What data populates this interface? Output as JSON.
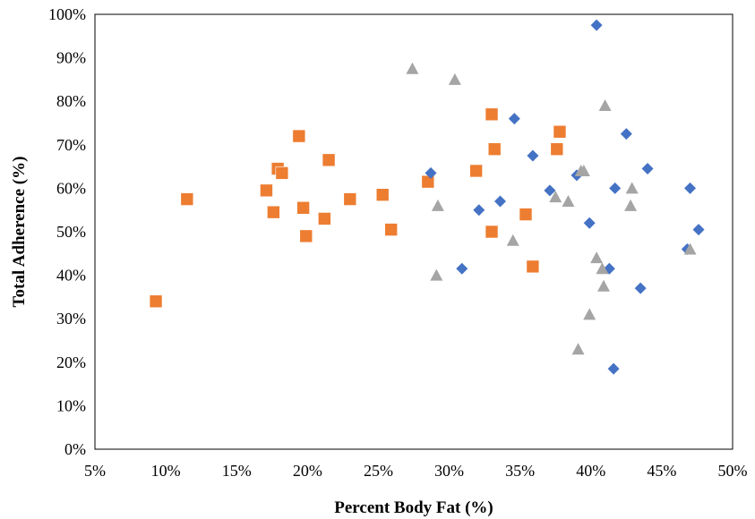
{
  "chart_data": {
    "type": "scatter",
    "xlabel": "Percent Body Fat (%)",
    "ylabel": "Total Adherence (%)",
    "xlim": [
      5,
      50
    ],
    "ylim": [
      0,
      100
    ],
    "x_ticks": [
      "5%",
      "10%",
      "15%",
      "20%",
      "25%",
      "30%",
      "35%",
      "40%",
      "45%",
      "50%"
    ],
    "y_ticks": [
      "0%",
      "10%",
      "20%",
      "30%",
      "40%",
      "50%",
      "60%",
      "70%",
      "80%",
      "90%",
      "100%"
    ],
    "grid": false,
    "legend": "none",
    "series": [
      {
        "marker": "square",
        "color": "#ED7D31",
        "x": [
          9.3,
          11.5,
          17.1,
          17.6,
          17.9,
          18.2,
          19.4,
          19.7,
          19.9,
          21.2,
          21.5,
          23.0,
          25.3,
          25.9,
          28.5,
          31.9,
          33.0,
          33.0,
          33.2,
          35.4,
          35.9,
          37.6,
          37.8
        ],
        "y": [
          34,
          57.5,
          59.5,
          54.5,
          64.5,
          63.5,
          72,
          55.5,
          49,
          53,
          66.5,
          57.5,
          58.5,
          50.5,
          61.5,
          64,
          77,
          50,
          69,
          54,
          42,
          69,
          73
        ]
      },
      {
        "marker": "diamond",
        "color": "#4472C4",
        "x": [
          28.7,
          30.9,
          32.1,
          33.6,
          34.6,
          35.9,
          37.1,
          39.0,
          39.9,
          40.4,
          41.3,
          41.6,
          41.7,
          42.5,
          43.5,
          44.0,
          46.8,
          47.0,
          47.6
        ],
        "y": [
          63.5,
          41.5,
          55,
          57,
          76,
          67.5,
          59.5,
          63,
          52,
          97.5,
          41.5,
          18.5,
          60,
          72.5,
          37,
          64.5,
          46,
          60,
          50.5
        ]
      },
      {
        "marker": "triangle",
        "color": "#A5A5A5",
        "x": [
          27.4,
          29.1,
          29.2,
          30.4,
          34.5,
          37.5,
          38.4,
          39.1,
          39.3,
          39.5,
          39.9,
          40.4,
          40.8,
          40.9,
          41.0,
          42.8,
          42.9,
          47.0
        ],
        "y": [
          87.5,
          40,
          56,
          85,
          48,
          58,
          57,
          23,
          64,
          64,
          31,
          44,
          41.5,
          37.5,
          79,
          56,
          60,
          46
        ]
      }
    ]
  }
}
